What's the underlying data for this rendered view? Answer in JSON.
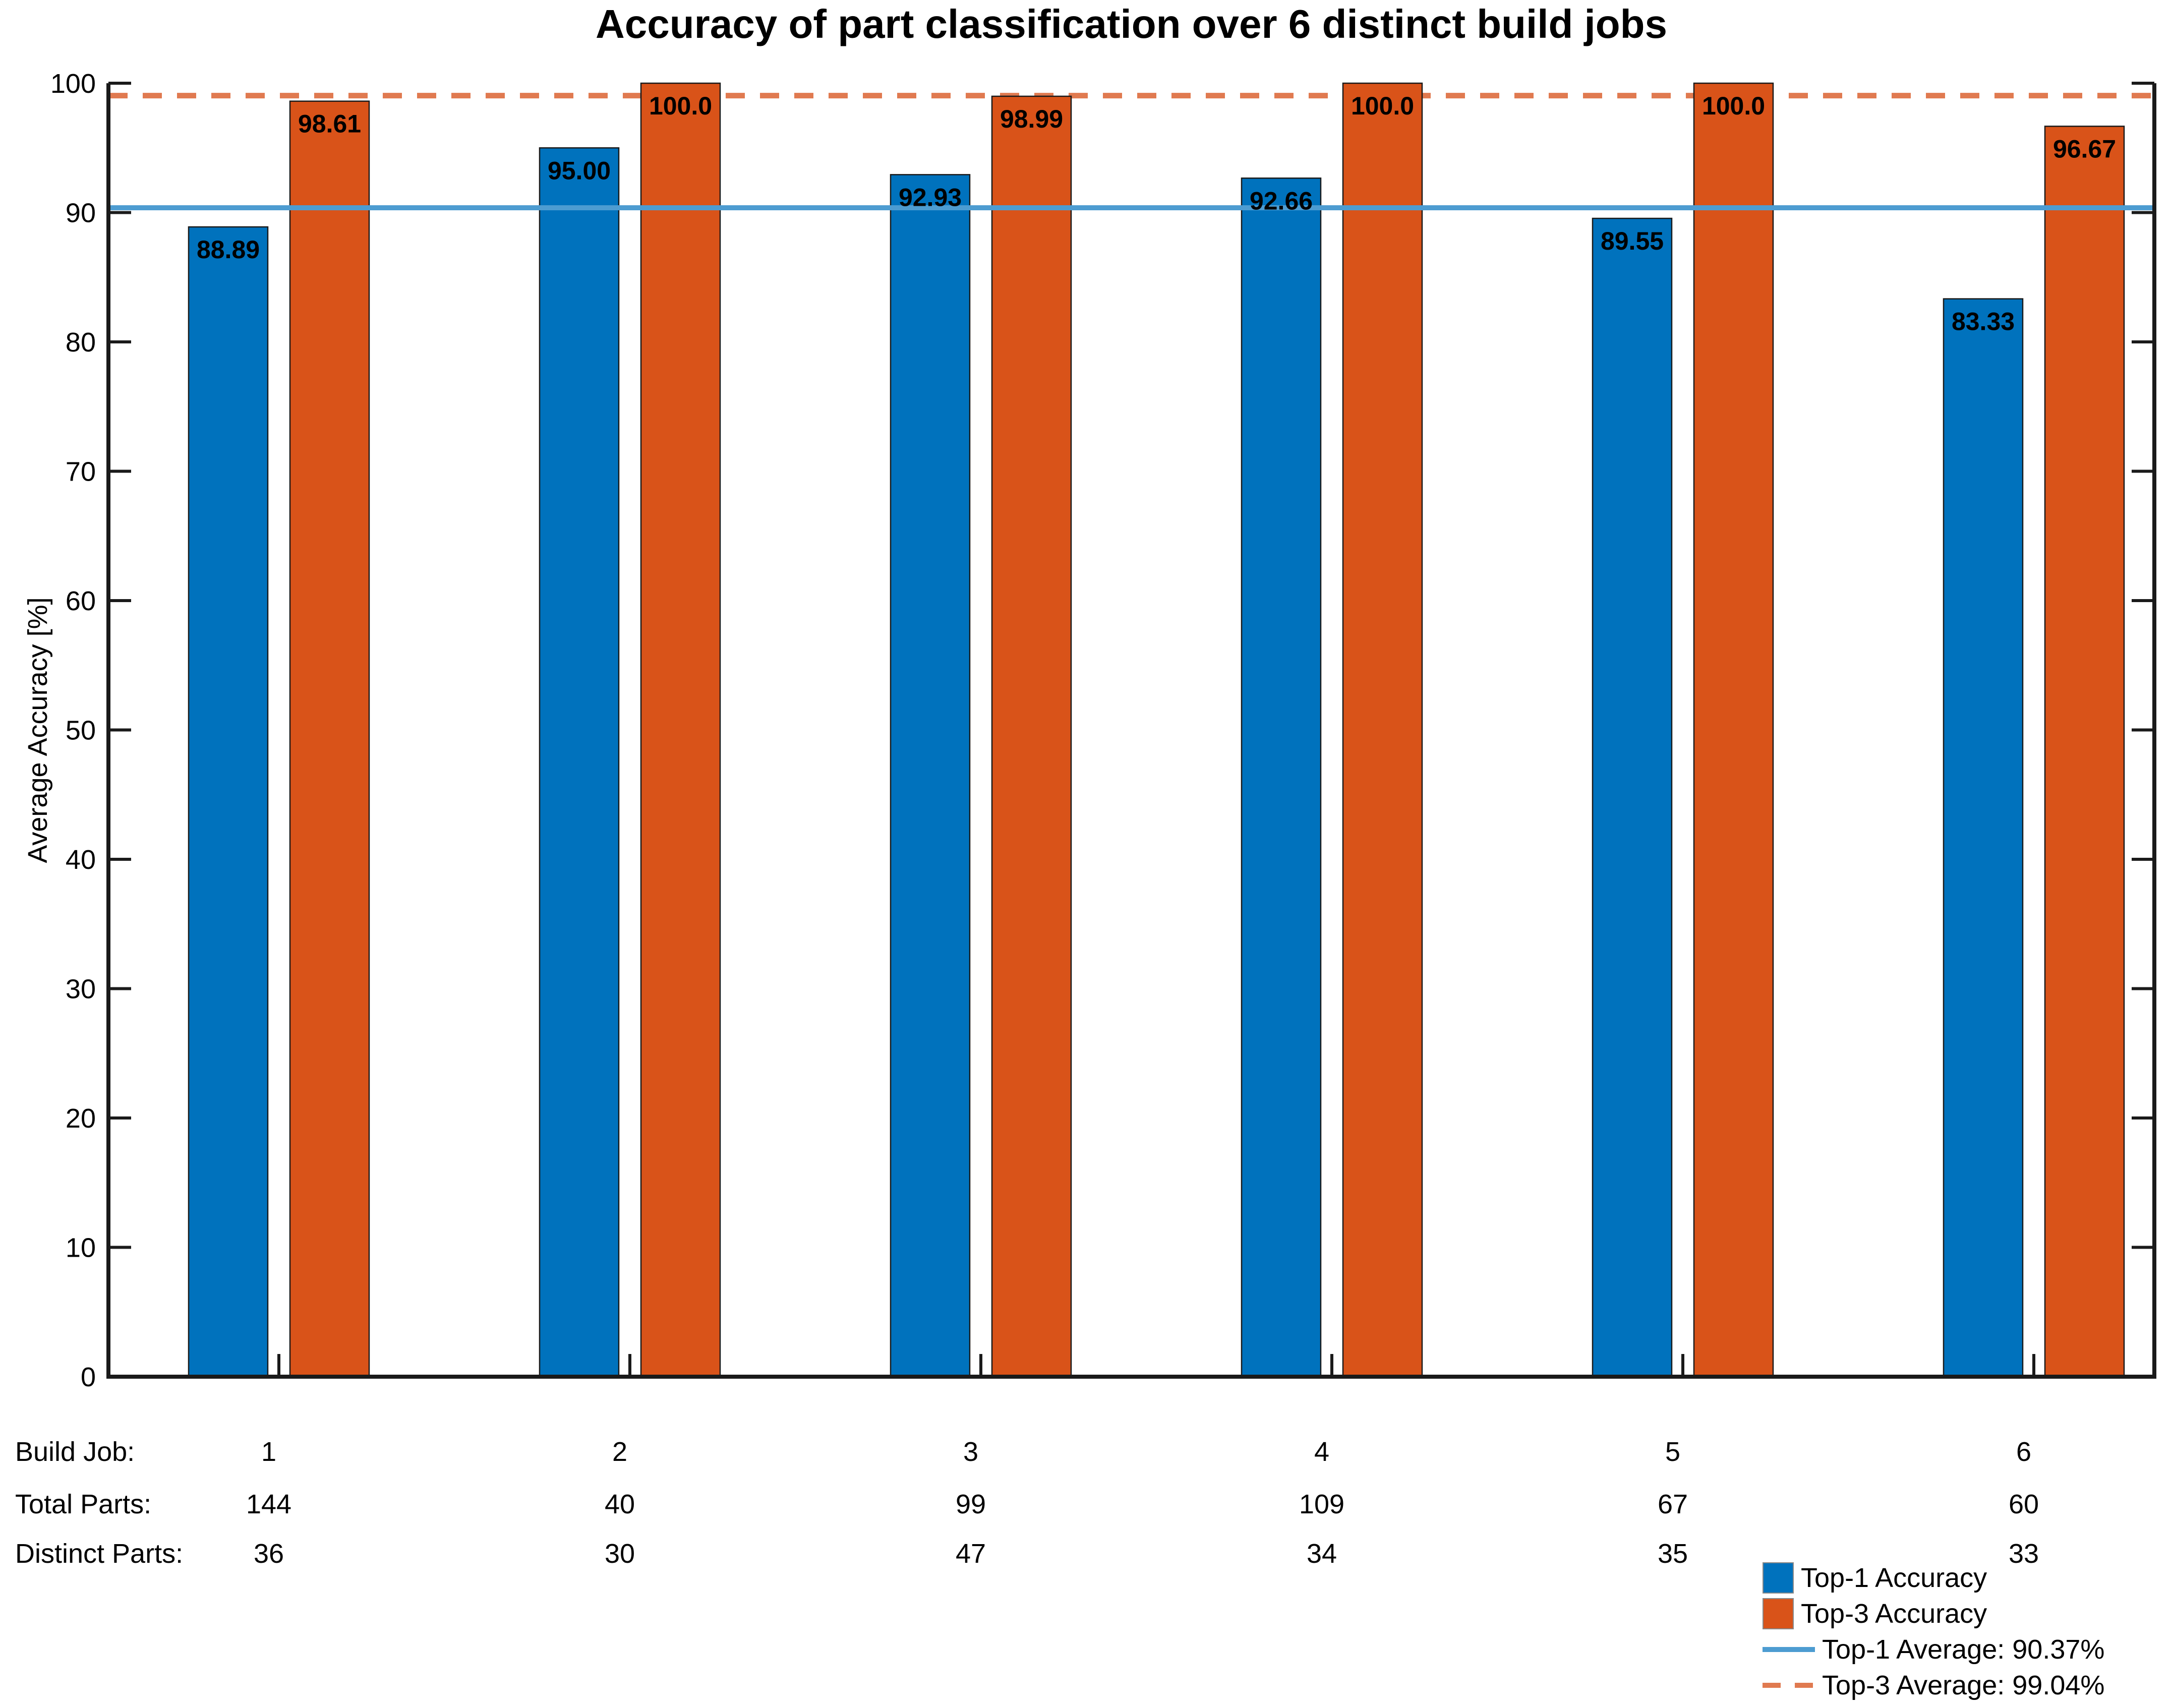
{
  "figure": {
    "background": "#ffffff"
  },
  "chart_data": {
    "type": "bar",
    "title": "Accuracy of part classification over 6 distinct build jobs",
    "xlabel": "",
    "ylabel": "Average Accuracy [%]",
    "ylim": [
      0,
      100
    ],
    "yticks": [
      0,
      10,
      20,
      30,
      40,
      50,
      60,
      70,
      80,
      90,
      100
    ],
    "grid": false,
    "legend_position": "bottom-right",
    "categories": [
      "1",
      "2",
      "3",
      "4",
      "5",
      "6"
    ],
    "series": [
      {
        "name": "Top-1 Accuracy",
        "color": "#0072BD",
        "values": [
          88.89,
          95.0,
          92.93,
          92.66,
          89.55,
          83.33
        ],
        "value_labels": [
          "88.89",
          "95.00",
          "92.93",
          "92.66",
          "89.55",
          "83.33"
        ]
      },
      {
        "name": "Top-3 Accuracy",
        "color": "#D95319",
        "values": [
          98.61,
          100.0,
          98.99,
          100.0,
          100.0,
          96.67
        ],
        "value_labels": [
          "98.61",
          "100.0",
          "98.99",
          "100.0",
          "100.0",
          "96.67"
        ]
      }
    ],
    "reference_lines": [
      {
        "name": "Top-1 Average: 90.37%",
        "value": 90.37,
        "color": "#4D9CD1",
        "style": "solid"
      },
      {
        "name": "Top-3 Average: 99.04%",
        "value": 99.04,
        "color": "#E07A50",
        "style": "dashed"
      }
    ],
    "info_table": {
      "rows": [
        {
          "label": "Build Job:",
          "values": [
            "1",
            "2",
            "3",
            "4",
            "5",
            "6"
          ]
        },
        {
          "label": "Total Parts:",
          "values": [
            "144",
            "40",
            "99",
            "109",
            "67",
            "60"
          ]
        },
        {
          "label": "Distinct Parts:",
          "values": [
            "36",
            "30",
            "47",
            "34",
            "35",
            "33"
          ]
        }
      ]
    },
    "colors": {
      "axis": "#1a1a1a",
      "bar_edge": "#1a1a1a",
      "value_label": "#000000"
    }
  }
}
